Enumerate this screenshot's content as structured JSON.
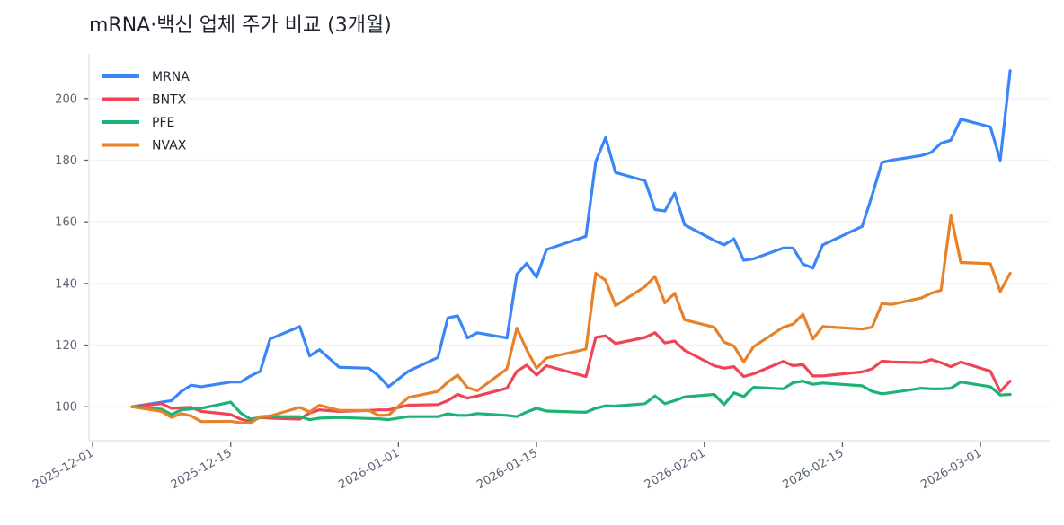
{
  "chart_data": {
    "type": "line",
    "title": "mRNA·백신 업체 주가 비교 (3개월)",
    "xlabel": "",
    "ylabel": "",
    "xlim": [
      "2025-12-01",
      "2026-03-08"
    ],
    "ylim": [
      89,
      214.5
    ],
    "grid": "horizontal",
    "legend": "top-left",
    "y_ticks": [
      100,
      120,
      140,
      160,
      180,
      200
    ],
    "x_ticks": [
      "2025-12-01",
      "2025-12-15",
      "2026-01-01",
      "2026-01-15",
      "2026-02-01",
      "2026-02-15",
      "2026-03-01"
    ],
    "x": [
      "2025-12-05",
      "2025-12-08",
      "2025-12-09",
      "2025-12-10",
      "2025-12-11",
      "2025-12-12",
      "2025-12-15",
      "2025-12-16",
      "2025-12-17",
      "2025-12-18",
      "2025-12-19",
      "2025-12-22",
      "2025-12-23",
      "2025-12-24",
      "2025-12-26",
      "2025-12-29",
      "2025-12-30",
      "2025-12-31",
      "2026-01-02",
      "2026-01-05",
      "2026-01-06",
      "2026-01-07",
      "2026-01-08",
      "2026-01-09",
      "2026-01-12",
      "2026-01-13",
      "2026-01-14",
      "2026-01-15",
      "2026-01-16",
      "2026-01-20",
      "2026-01-21",
      "2026-01-22",
      "2026-01-23",
      "2026-01-26",
      "2026-01-27",
      "2026-01-28",
      "2026-01-29",
      "2026-01-30",
      "2026-02-02",
      "2026-02-03",
      "2026-02-04",
      "2026-02-05",
      "2026-02-06",
      "2026-02-09",
      "2026-02-10",
      "2026-02-11",
      "2026-02-12",
      "2026-02-13",
      "2026-02-17",
      "2026-02-18",
      "2026-02-19",
      "2026-02-20",
      "2026-02-23",
      "2026-02-24",
      "2026-02-25",
      "2026-02-26",
      "2026-02-27",
      "2026-03-02",
      "2026-03-03",
      "2026-03-04"
    ],
    "series": [
      {
        "name": "MRNA",
        "color": "#3b86f7",
        "values": [
          100,
          101.5,
          102,
          105,
          107,
          106.5,
          108,
          108,
          110,
          111.5,
          122,
          126,
          116.5,
          118.5,
          112.8,
          112.5,
          110,
          106.5,
          111.5,
          116,
          128.8,
          129.5,
          122.3,
          124,
          122.3,
          143,
          146.5,
          142,
          151,
          155.3,
          179.5,
          187.3,
          176,
          173.3,
          164,
          163.5,
          169.3,
          159,
          154,
          152.5,
          154.5,
          147.5,
          148,
          151.5,
          151.5,
          146.3,
          145,
          152.5,
          158.5,
          168.5,
          179.3,
          180,
          181.5,
          182.5,
          185.5,
          186.5,
          193.3,
          190.8,
          180,
          209
        ]
      },
      {
        "name": "BNTX",
        "color": "#ef4455",
        "values": [
          100,
          101,
          99.5,
          99.7,
          99.8,
          98.5,
          97.5,
          96,
          95.2,
          96.5,
          96.3,
          96,
          98,
          99,
          98.5,
          98.8,
          99,
          99,
          100.5,
          100.7,
          102,
          104,
          102.8,
          103.5,
          106,
          111.5,
          113.5,
          110.3,
          113.3,
          109.8,
          122.5,
          123,
          120.5,
          122.5,
          124,
          120.7,
          121.3,
          118.3,
          113.3,
          112.5,
          113,
          109.8,
          110.7,
          114.7,
          113.3,
          113.7,
          110,
          110,
          111.3,
          112.3,
          114.8,
          114.5,
          114.3,
          115.3,
          114.3,
          113,
          114.5,
          111.5,
          105,
          108.3
        ]
      },
      {
        "name": "PFE",
        "color": "#1db375",
        "values": [
          100,
          99.2,
          97.5,
          99,
          99.3,
          99.5,
          101.5,
          98,
          96,
          96.5,
          96.8,
          96.8,
          95.8,
          96.3,
          96.5,
          96.2,
          96.1,
          95.8,
          96.8,
          96.8,
          97.7,
          97.2,
          97.2,
          97.8,
          97.2,
          96.8,
          98.3,
          99.5,
          98.6,
          98.2,
          99.5,
          100.3,
          100.2,
          101,
          103.5,
          101,
          102,
          103.2,
          104,
          100.7,
          104.5,
          103.3,
          106.3,
          105.8,
          107.8,
          108.3,
          107.3,
          107.7,
          106.8,
          105,
          104.2,
          104.6,
          106,
          105.8,
          105.8,
          106,
          108,
          106.5,
          103.8,
          104
        ]
      },
      {
        "name": "NVAX",
        "color": "#e8822a",
        "values": [
          100,
          98.5,
          96.5,
          97.8,
          97,
          95.2,
          95.3,
          94.8,
          94.7,
          96.8,
          97,
          99.8,
          98.3,
          100.5,
          98.8,
          98.8,
          97.2,
          97.3,
          103,
          105,
          108,
          110.3,
          106.2,
          105.2,
          112.3,
          125.5,
          118.5,
          112.5,
          115.8,
          118.7,
          143.3,
          141,
          132.8,
          139,
          142.3,
          133.7,
          136.8,
          128.2,
          125.8,
          121,
          119.7,
          114.5,
          119.5,
          125.8,
          126.8,
          130,
          122,
          126,
          125.2,
          125.8,
          133.5,
          133.2,
          135.3,
          136.8,
          137.8,
          162,
          146.8,
          146.4,
          137.4,
          143.3
        ]
      }
    ]
  }
}
